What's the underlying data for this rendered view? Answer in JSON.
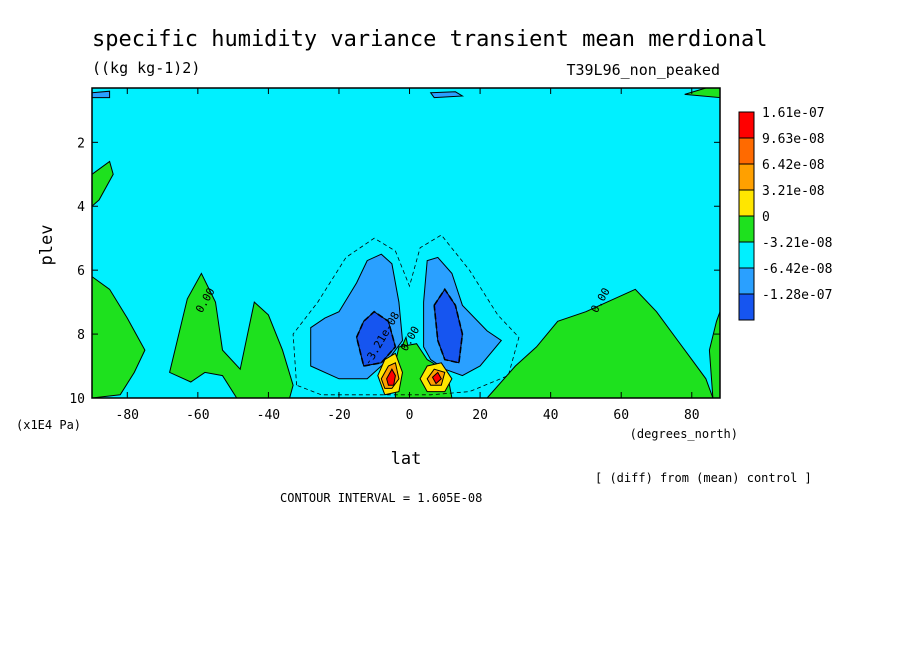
{
  "chart_data": {
    "type": "heatmap",
    "title": "specific humidity variance transient mean merdional",
    "units": "((kg kg-1)2)",
    "run_label": "T39L96_non_peaked",
    "xlabel": "lat",
    "xunits": "(degrees_north)",
    "ylabel": "plev",
    "yunits": "(x1E4 Pa)",
    "xlim": [
      -90,
      88
    ],
    "ylim": [
      10,
      0.3
    ],
    "xticks": [
      -80,
      -60,
      -40,
      -20,
      0,
      20,
      40,
      60,
      80
    ],
    "yticks": [
      2,
      4,
      6,
      8,
      10
    ],
    "contour_interval_text": "CONTOUR INTERVAL = 1.605E-08",
    "diff_note": "[ (diff) from (mean) control ]",
    "contour_labels": [
      {
        "text": "0.00",
        "x": -57,
        "y": 7.0
      },
      {
        "text": "0.00",
        "x": 55,
        "y": 7.0
      },
      {
        "text": "0.00",
        "x": 1,
        "y": 8.2
      },
      {
        "text": "-3.21e-08",
        "x": -7,
        "y": 8.2
      }
    ],
    "legend": {
      "levels": [
        "1.61e-07",
        "9.63e-08",
        "6.42e-08",
        "3.21e-08",
        "0",
        "-3.21e-08",
        "-6.42e-08",
        "-1.28e-07"
      ],
      "colors": [
        "#ff0000",
        "#ff6a00",
        "#ffa000",
        "#ffe600",
        "#1ee11e",
        "#00f0ff",
        "#2aa0ff",
        "#1655f0"
      ]
    },
    "regions": [
      {
        "class": "positive_small",
        "color": "#1ee11e",
        "polygon": [
          [
            -90,
            6.2
          ],
          [
            -85,
            6.6
          ],
          [
            -80,
            7.5
          ],
          [
            -75,
            8.5
          ],
          [
            -78,
            9.2
          ],
          [
            -82,
            9.9
          ],
          [
            -90,
            10
          ]
        ]
      },
      {
        "class": "positive_small",
        "color": "#1ee11e",
        "polygon": [
          [
            -90,
            3.0
          ],
          [
            -85,
            2.6
          ],
          [
            -84,
            3.0
          ],
          [
            -88,
            3.8
          ],
          [
            -90,
            4.0
          ]
        ]
      },
      {
        "class": "positive_small",
        "color": "#1ee11e",
        "polygon": [
          [
            -68,
            9.2
          ],
          [
            -63,
            6.9
          ],
          [
            -59,
            6.1
          ],
          [
            -55,
            7.0
          ],
          [
            -53,
            8.5
          ],
          [
            -48,
            9.1
          ],
          [
            -44,
            7.0
          ],
          [
            -40,
            7.4
          ],
          [
            -36,
            8.5
          ],
          [
            -33,
            9.6
          ],
          [
            -34,
            10
          ],
          [
            -49,
            10
          ],
          [
            -53,
            9.3
          ],
          [
            -58,
            9.2
          ],
          [
            -62,
            9.5
          ]
        ]
      },
      {
        "class": "positive_small",
        "color": "#1ee11e",
        "polygon": [
          [
            -2,
            9.6
          ],
          [
            -3,
            8.6
          ],
          [
            -1,
            8.1
          ],
          [
            0,
            8.6
          ],
          [
            1,
            9.3
          ]
        ]
      },
      {
        "class": "positive_small",
        "color": "#1ee11e",
        "polygon": [
          [
            -4,
            8.9
          ],
          [
            -3,
            8.4
          ],
          [
            2,
            8.3
          ],
          [
            5,
            8.8
          ],
          [
            8,
            9.0
          ],
          [
            11,
            9.4
          ],
          [
            12,
            10
          ],
          [
            -4,
            10
          ]
        ]
      },
      {
        "class": "positive_small",
        "color": "#1ee11e",
        "polygon": [
          [
            22,
            10
          ],
          [
            30,
            9.0
          ],
          [
            36,
            8.4
          ],
          [
            42,
            7.6
          ],
          [
            50,
            7.3
          ],
          [
            56,
            7.0
          ],
          [
            64,
            6.6
          ],
          [
            70,
            7.3
          ],
          [
            76,
            8.2
          ],
          [
            80,
            8.8
          ],
          [
            84,
            9.4
          ],
          [
            86,
            10
          ]
        ]
      },
      {
        "class": "positive_small",
        "color": "#1ee11e",
        "polygon": [
          [
            85,
            8.5
          ],
          [
            87,
            7.6
          ],
          [
            88,
            7.3
          ],
          [
            88,
            10
          ],
          [
            86,
            10
          ]
        ]
      },
      {
        "class": "positive_small",
        "color": "#1ee11e",
        "polygon": [
          [
            78,
            0.5
          ],
          [
            84,
            0.3
          ],
          [
            88,
            0.3
          ],
          [
            88,
            0.6
          ]
        ]
      },
      {
        "class": "negative_mid",
        "color": "#2aa0ff",
        "polygon": [
          [
            -28,
            9.0
          ],
          [
            -28,
            7.8
          ],
          [
            -24,
            7.5
          ],
          [
            -20,
            7.3
          ],
          [
            -15,
            6.4
          ],
          [
            -12,
            5.7
          ],
          [
            -8,
            5.5
          ],
          [
            -5,
            5.8
          ],
          [
            -3,
            7.0
          ],
          [
            -2,
            8.2
          ],
          [
            -6,
            8.8
          ],
          [
            -12,
            9.4
          ],
          [
            -20,
            9.4
          ]
        ]
      },
      {
        "class": "negative_mid",
        "color": "#2aa0ff",
        "polygon": [
          [
            4,
            7.0
          ],
          [
            5,
            5.7
          ],
          [
            8,
            5.6
          ],
          [
            12,
            6.1
          ],
          [
            15,
            7.1
          ],
          [
            22,
            7.9
          ],
          [
            26,
            8.2
          ],
          [
            20,
            9.0
          ],
          [
            15,
            9.3
          ],
          [
            10,
            9.1
          ],
          [
            6,
            8.8
          ],
          [
            4,
            8.4
          ]
        ]
      },
      {
        "class": "negative_large",
        "color": "#1655f0",
        "polygon": [
          [
            -15,
            8.1
          ],
          [
            -13,
            7.6
          ],
          [
            -10,
            7.3
          ],
          [
            -6,
            7.6
          ],
          [
            -4,
            8.4
          ],
          [
            -8,
            8.9
          ],
          [
            -13,
            9.0
          ]
        ]
      },
      {
        "class": "negative_large",
        "color": "#1655f0",
        "polygon": [
          [
            7,
            7.1
          ],
          [
            10,
            6.6
          ],
          [
            13,
            7.1
          ],
          [
            15,
            8.0
          ],
          [
            14,
            8.9
          ],
          [
            10,
            8.8
          ],
          [
            8,
            8.2
          ]
        ]
      },
      {
        "class": "positive_peak",
        "color": "#ffe600",
        "polygon": [
          [
            -9,
            9.3
          ],
          [
            -7,
            8.8
          ],
          [
            -4,
            8.6
          ],
          [
            -2,
            9.2
          ],
          [
            -3,
            9.8
          ],
          [
            -7,
            9.9
          ]
        ]
      },
      {
        "class": "positive_peak",
        "color": "#ffa000",
        "polygon": [
          [
            -8,
            9.4
          ],
          [
            -6,
            9.0
          ],
          [
            -4,
            8.9
          ],
          [
            -3,
            9.4
          ],
          [
            -5,
            9.7
          ],
          [
            -7,
            9.7
          ]
        ]
      },
      {
        "class": "positive_peak",
        "color": "#ff0000",
        "polygon": [
          [
            -6.5,
            9.4
          ],
          [
            -5,
            9.1
          ],
          [
            -4,
            9.3
          ],
          [
            -4.5,
            9.6
          ],
          [
            -6,
            9.6
          ]
        ]
      },
      {
        "class": "positive_peak",
        "color": "#ffe600",
        "polygon": [
          [
            3,
            9.4
          ],
          [
            5,
            9.0
          ],
          [
            9,
            8.9
          ],
          [
            12,
            9.4
          ],
          [
            10,
            9.8
          ],
          [
            5,
            9.8
          ]
        ]
      },
      {
        "class": "positive_peak",
        "color": "#ffa000",
        "polygon": [
          [
            5,
            9.4
          ],
          [
            7,
            9.1
          ],
          [
            10,
            9.2
          ],
          [
            9,
            9.6
          ],
          [
            6,
            9.6
          ]
        ]
      },
      {
        "class": "positive_peak",
        "color": "#ff0000",
        "polygon": [
          [
            6.5,
            9.35
          ],
          [
            8,
            9.2
          ],
          [
            9,
            9.4
          ],
          [
            7.5,
            9.55
          ]
        ]
      },
      {
        "class": "negative_mid",
        "color": "#2aa0ff",
        "polygon": [
          [
            -90,
            0.45
          ],
          [
            -85,
            0.4
          ],
          [
            -85,
            0.6
          ],
          [
            -90,
            0.6
          ]
        ]
      },
      {
        "class": "negative_mid",
        "color": "#2aa0ff",
        "polygon": [
          [
            6,
            0.45
          ],
          [
            13,
            0.42
          ],
          [
            15,
            0.55
          ],
          [
            7,
            0.6
          ]
        ]
      }
    ],
    "contours": [
      {
        "style": "dashed_thin",
        "points": [
          [
            -32,
            9.6
          ],
          [
            -33,
            8.0
          ],
          [
            -26,
            7.0
          ],
          [
            -18,
            5.6
          ],
          [
            -10,
            5.0
          ],
          [
            -4,
            5.4
          ],
          [
            0,
            6.5
          ],
          [
            3,
            5.3
          ],
          [
            9,
            4.9
          ],
          [
            17,
            6.0
          ],
          [
            25,
            7.4
          ],
          [
            31,
            8.1
          ],
          [
            28,
            9.3
          ],
          [
            17,
            9.8
          ],
          [
            6,
            9.9
          ],
          [
            -10,
            9.9
          ],
          [
            -25,
            9.9
          ],
          [
            -32,
            9.6
          ]
        ]
      },
      {
        "style": "dashed_thick",
        "points": [
          [
            -15,
            8.1
          ],
          [
            -13,
            7.6
          ],
          [
            -10,
            7.3
          ],
          [
            -6,
            7.6
          ],
          [
            -4,
            8.4
          ],
          [
            -8,
            8.9
          ],
          [
            -13,
            9.0
          ],
          [
            -15,
            8.1
          ]
        ]
      },
      {
        "style": "dashed_thick",
        "points": [
          [
            7,
            7.1
          ],
          [
            10,
            6.6
          ],
          [
            13,
            7.1
          ],
          [
            15,
            8.0
          ],
          [
            14,
            8.9
          ],
          [
            10,
            8.8
          ],
          [
            8,
            8.2
          ],
          [
            7,
            7.1
          ]
        ]
      }
    ]
  }
}
